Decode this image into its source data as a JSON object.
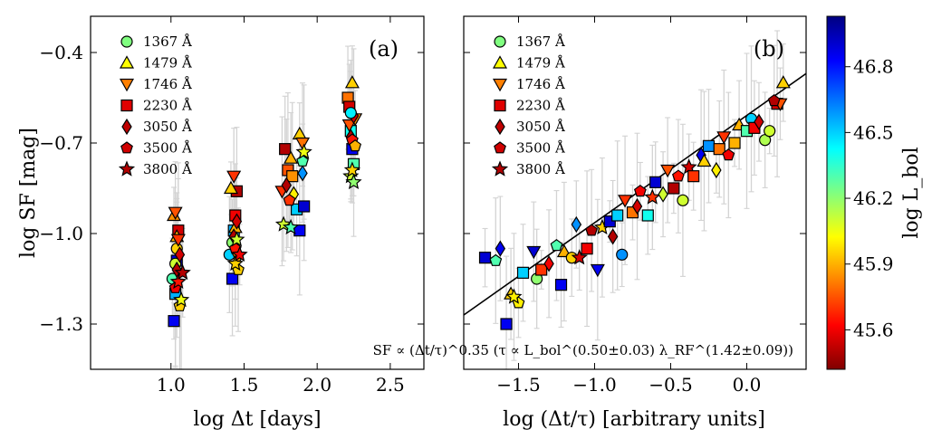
{
  "figure": {
    "colorbar": {
      "label": "log L_bol",
      "ticks": [
        "45.6",
        "45.9",
        "46.2",
        "46.5",
        "46.8"
      ],
      "tick_values": [
        45.6,
        45.9,
        46.2,
        46.5,
        46.8
      ],
      "range": [
        45.42,
        47.03
      ],
      "colormap": "jet",
      "colors": [
        "#800000",
        "#ff0000",
        "#ff8000",
        "#ffff00",
        "#80ff80",
        "#00ffff",
        "#0080ff",
        "#0000ff",
        "#000080"
      ]
    },
    "legend": [
      {
        "label": "1367 Å",
        "marker": "circle",
        "color": "#80ff80"
      },
      {
        "label": "1479 Å",
        "marker": "triangle-up",
        "color": "#ffff00"
      },
      {
        "label": "1746 Å",
        "marker": "triangle-down",
        "color": "#ff8000"
      },
      {
        "label": "2230 Å",
        "marker": "square",
        "color": "#e00000"
      },
      {
        "label": "3050 Å",
        "marker": "diamond",
        "color": "#c00000"
      },
      {
        "label": "3500 Å",
        "marker": "pentagon",
        "color": "#d00000"
      },
      {
        "label": "3800 Å",
        "marker": "star",
        "color": "#b00000"
      }
    ]
  },
  "chart_data": [
    {
      "type": "scatter",
      "panel": "(a)",
      "xlabel": "log Δt [days]",
      "ylabel": "log SF [mag]",
      "xlim": [
        0.45,
        2.73
      ],
      "ylim": [
        -1.45,
        -0.28
      ],
      "xticks": [
        1.0,
        1.5,
        2.0,
        2.5
      ],
      "xtick_labels": [
        "1.0",
        "1.5",
        "2.0",
        "2.5"
      ],
      "yticks": [
        -1.3,
        -1.0,
        -0.7,
        -0.4
      ],
      "ytick_labels": [
        "−1.3",
        "−1.0",
        "−0.7",
        "−0.4"
      ],
      "grid": false,
      "legend_position": "top-left",
      "points": [
        {
          "x": 1.02,
          "y": -1.29,
          "marker": "square",
          "logL": 46.85
        },
        {
          "x": 1.03,
          "y": -1.2,
          "marker": "square",
          "logL": 46.55
        },
        {
          "x": 1.04,
          "y": -1.09,
          "marker": "square",
          "logL": 46.9
        },
        {
          "x": 1.05,
          "y": -0.99,
          "marker": "square",
          "logL": 45.55
        },
        {
          "x": 1.01,
          "y": -1.15,
          "marker": "circle",
          "logL": 46.3
        },
        {
          "x": 1.03,
          "y": -1.1,
          "marker": "circle",
          "logL": 46.1
        },
        {
          "x": 1.04,
          "y": -1.05,
          "marker": "circle",
          "logL": 45.95
        },
        {
          "x": 1.02,
          "y": -0.94,
          "marker": "triangle-up",
          "logL": 45.85
        },
        {
          "x": 1.04,
          "y": -1.01,
          "marker": "triangle-up",
          "logL": 45.9
        },
        {
          "x": 1.03,
          "y": -0.93,
          "marker": "triangle-down",
          "logL": 45.75
        },
        {
          "x": 1.05,
          "y": -1.02,
          "marker": "triangle-down",
          "logL": 45.7
        },
        {
          "x": 1.04,
          "y": -1.12,
          "marker": "diamond",
          "logL": 45.5
        },
        {
          "x": 1.06,
          "y": -1.07,
          "marker": "diamond",
          "logL": 45.55
        },
        {
          "x": 1.03,
          "y": -1.18,
          "marker": "pentagon",
          "logL": 45.6
        },
        {
          "x": 1.06,
          "y": -1.24,
          "marker": "pentagon",
          "logL": 45.95
        },
        {
          "x": 1.05,
          "y": -1.16,
          "marker": "star",
          "logL": 45.65
        },
        {
          "x": 1.07,
          "y": -1.22,
          "marker": "star",
          "logL": 46.05
        },
        {
          "x": 1.08,
          "y": -1.13,
          "marker": "star",
          "logL": 45.5
        },
        {
          "x": 1.42,
          "y": -1.15,
          "marker": "square",
          "logL": 46.85
        },
        {
          "x": 1.43,
          "y": -0.99,
          "marker": "square",
          "logL": 46.55
        },
        {
          "x": 1.45,
          "y": -0.86,
          "marker": "square",
          "logL": 45.5
        },
        {
          "x": 1.44,
          "y": -0.94,
          "marker": "square",
          "logL": 45.6
        },
        {
          "x": 1.4,
          "y": -1.07,
          "marker": "circle",
          "logL": 46.5
        },
        {
          "x": 1.42,
          "y": -1.03,
          "marker": "circle",
          "logL": 46.2
        },
        {
          "x": 1.41,
          "y": -0.85,
          "marker": "triangle-up",
          "logL": 45.95
        },
        {
          "x": 1.44,
          "y": -0.98,
          "marker": "triangle-up",
          "logL": 45.9
        },
        {
          "x": 1.43,
          "y": -0.81,
          "marker": "triangle-down",
          "logL": 45.7
        },
        {
          "x": 1.46,
          "y": -1.08,
          "marker": "triangle-down",
          "logL": 45.85
        },
        {
          "x": 1.43,
          "y": -1.01,
          "marker": "diamond",
          "logL": 45.5
        },
        {
          "x": 1.45,
          "y": -0.96,
          "marker": "diamond",
          "logL": 45.55
        },
        {
          "x": 1.44,
          "y": -1.05,
          "marker": "pentagon",
          "logL": 45.65
        },
        {
          "x": 1.46,
          "y": -1.12,
          "marker": "pentagon",
          "logL": 45.95
        },
        {
          "x": 1.44,
          "y": -1.1,
          "marker": "star",
          "logL": 45.95
        },
        {
          "x": 1.45,
          "y": -1.02,
          "marker": "star",
          "logL": 46.1
        },
        {
          "x": 1.47,
          "y": -1.07,
          "marker": "star",
          "logL": 45.6
        },
        {
          "x": 1.78,
          "y": -0.72,
          "marker": "square",
          "logL": 45.5
        },
        {
          "x": 1.8,
          "y": -0.79,
          "marker": "square",
          "logL": 45.75
        },
        {
          "x": 1.83,
          "y": -0.81,
          "marker": "square",
          "logL": 45.85
        },
        {
          "x": 1.86,
          "y": -0.92,
          "marker": "square",
          "logL": 46.5
        },
        {
          "x": 1.88,
          "y": -0.99,
          "marker": "square",
          "logL": 46.85
        },
        {
          "x": 1.91,
          "y": -0.91,
          "marker": "square",
          "logL": 46.9
        },
        {
          "x": 1.76,
          "y": -0.86,
          "marker": "triangle-down",
          "logL": 45.7
        },
        {
          "x": 1.82,
          "y": -0.75,
          "marker": "triangle-up",
          "logL": 45.9
        },
        {
          "x": 1.88,
          "y": -0.67,
          "marker": "triangle-up",
          "logL": 45.95
        },
        {
          "x": 1.9,
          "y": -0.7,
          "marker": "triangle-down",
          "logL": 45.8
        },
        {
          "x": 1.79,
          "y": -0.84,
          "marker": "diamond",
          "logL": 45.5
        },
        {
          "x": 1.84,
          "y": -0.87,
          "marker": "diamond",
          "logL": 46.0
        },
        {
          "x": 1.9,
          "y": -0.8,
          "marker": "diamond",
          "logL": 46.6
        },
        {
          "x": 1.81,
          "y": -0.89,
          "marker": "pentagon",
          "logL": 45.7
        },
        {
          "x": 1.9,
          "y": -0.76,
          "marker": "pentagon",
          "logL": 46.3
        },
        {
          "x": 1.77,
          "y": -0.97,
          "marker": "star",
          "logL": 46.1
        },
        {
          "x": 1.82,
          "y": -0.98,
          "marker": "star",
          "logL": 46.3
        },
        {
          "x": 1.91,
          "y": -0.73,
          "marker": "star",
          "logL": 46.05
        },
        {
          "x": 2.21,
          "y": -0.55,
          "marker": "square",
          "logL": 45.8
        },
        {
          "x": 2.22,
          "y": -0.58,
          "marker": "square",
          "logL": 45.55
        },
        {
          "x": 2.23,
          "y": -0.66,
          "marker": "square",
          "logL": 46.4
        },
        {
          "x": 2.24,
          "y": -0.72,
          "marker": "square",
          "logL": 46.85
        },
        {
          "x": 2.25,
          "y": -0.77,
          "marker": "square",
          "logL": 46.3
        },
        {
          "x": 2.24,
          "y": -0.5,
          "marker": "triangle-up",
          "logL": 45.95
        },
        {
          "x": 2.22,
          "y": -0.64,
          "marker": "triangle-down",
          "logL": 45.75
        },
        {
          "x": 2.26,
          "y": -0.62,
          "marker": "triangle-down",
          "logL": 45.85
        },
        {
          "x": 2.23,
          "y": -0.68,
          "marker": "diamond",
          "logL": 45.5
        },
        {
          "x": 2.25,
          "y": -0.61,
          "marker": "diamond",
          "logL": 45.55
        },
        {
          "x": 2.24,
          "y": -0.69,
          "marker": "pentagon",
          "logL": 45.65
        },
        {
          "x": 2.26,
          "y": -0.71,
          "marker": "pentagon",
          "logL": 45.9
        },
        {
          "x": 2.23,
          "y": -0.81,
          "marker": "star",
          "logL": 46.1
        },
        {
          "x": 2.25,
          "y": -0.83,
          "marker": "star",
          "logL": 46.2
        },
        {
          "x": 2.24,
          "y": -0.79,
          "marker": "star",
          "logL": 45.95
        },
        {
          "x": 2.23,
          "y": -0.6,
          "marker": "circle",
          "logL": 46.45
        }
      ]
    },
    {
      "type": "scatter",
      "panel": "(b)",
      "xlabel": "log (Δt/τ) [arbitrary units]",
      "xlim": [
        -1.86,
        0.39
      ],
      "ylim": [
        -1.45,
        -0.28
      ],
      "xticks": [
        -1.5,
        -1.0,
        -0.5,
        0.0
      ],
      "xtick_labels": [
        "−1.5",
        "−1.0",
        "−0.5",
        "0.0"
      ],
      "grid": false,
      "legend_position": "top-left",
      "fit_line": {
        "x": [
          -1.86,
          0.39
        ],
        "y": [
          -1.27,
          -0.47
        ]
      },
      "annotation": "SF ∝ (Δt/τ)^0.35 (τ ∝ L_bol^(0.50±0.03) λ_RF^(1.42±0.09))",
      "points": [
        {
          "x": -1.72,
          "y": -1.08,
          "marker": "square",
          "logL": 46.9
        },
        {
          "x": -1.65,
          "y": -1.09,
          "marker": "pentagon",
          "logL": 46.3
        },
        {
          "x": -1.62,
          "y": -1.05,
          "marker": "diamond",
          "logL": 46.85
        },
        {
          "x": -1.55,
          "y": -1.2,
          "marker": "triangle-up",
          "logL": 45.95
        },
        {
          "x": -1.5,
          "y": -1.23,
          "marker": "pentagon",
          "logL": 46.0
        },
        {
          "x": -1.58,
          "y": -1.3,
          "marker": "square",
          "logL": 46.85
        },
        {
          "x": -1.53,
          "y": -1.21,
          "marker": "star",
          "logL": 46.0
        },
        {
          "x": -1.47,
          "y": -1.13,
          "marker": "square",
          "logL": 46.5
        },
        {
          "x": -1.4,
          "y": -1.06,
          "marker": "triangle-down",
          "logL": 46.9
        },
        {
          "x": -1.38,
          "y": -1.15,
          "marker": "circle",
          "logL": 46.2
        },
        {
          "x": -1.35,
          "y": -1.12,
          "marker": "square",
          "logL": 45.7
        },
        {
          "x": -1.3,
          "y": -1.1,
          "marker": "diamond",
          "logL": 45.6
        },
        {
          "x": -1.25,
          "y": -1.04,
          "marker": "pentagon",
          "logL": 46.3
        },
        {
          "x": -1.22,
          "y": -1.17,
          "marker": "square",
          "logL": 46.85
        },
        {
          "x": -1.2,
          "y": -1.06,
          "marker": "triangle-up",
          "logL": 45.9
        },
        {
          "x": -1.15,
          "y": -1.08,
          "marker": "circle",
          "logL": 45.95
        },
        {
          "x": -1.12,
          "y": -0.97,
          "marker": "diamond",
          "logL": 46.6
        },
        {
          "x": -1.1,
          "y": -1.08,
          "marker": "star",
          "logL": 45.55
        },
        {
          "x": -1.05,
          "y": -1.05,
          "marker": "square",
          "logL": 45.6
        },
        {
          "x": -1.02,
          "y": -0.99,
          "marker": "pentagon",
          "logL": 45.5
        },
        {
          "x": -0.98,
          "y": -1.12,
          "marker": "triangle-down",
          "logL": 46.85
        },
        {
          "x": -0.95,
          "y": -0.98,
          "marker": "star",
          "logL": 45.95
        },
        {
          "x": -0.9,
          "y": -0.96,
          "marker": "square",
          "logL": 46.9
        },
        {
          "x": -0.88,
          "y": -1.01,
          "marker": "diamond",
          "logL": 45.5
        },
        {
          "x": -0.85,
          "y": -0.94,
          "marker": "square",
          "logL": 46.5
        },
        {
          "x": -0.82,
          "y": -1.07,
          "marker": "circle",
          "logL": 46.6
        },
        {
          "x": -0.8,
          "y": -0.89,
          "marker": "triangle-down",
          "logL": 45.7
        },
        {
          "x": -0.75,
          "y": -0.93,
          "marker": "square",
          "logL": 45.8
        },
        {
          "x": -0.72,
          "y": -0.91,
          "marker": "diamond",
          "logL": 45.55
        },
        {
          "x": -0.7,
          "y": -0.86,
          "marker": "pentagon",
          "logL": 45.6
        },
        {
          "x": -0.65,
          "y": -0.94,
          "marker": "square",
          "logL": 46.4
        },
        {
          "x": -0.62,
          "y": -0.88,
          "marker": "star",
          "logL": 45.7
        },
        {
          "x": -0.6,
          "y": -0.83,
          "marker": "square",
          "logL": 46.9
        },
        {
          "x": -0.55,
          "y": -0.87,
          "marker": "diamond",
          "logL": 46.1
        },
        {
          "x": -0.52,
          "y": -0.79,
          "marker": "triangle-down",
          "logL": 45.75
        },
        {
          "x": -0.48,
          "y": -0.85,
          "marker": "square",
          "logL": 45.5
        },
        {
          "x": -0.45,
          "y": -0.81,
          "marker": "pentagon",
          "logL": 45.65
        },
        {
          "x": -0.42,
          "y": -0.89,
          "marker": "circle",
          "logL": 46.1
        },
        {
          "x": -0.38,
          "y": -0.78,
          "marker": "star",
          "logL": 45.55
        },
        {
          "x": -0.35,
          "y": -0.81,
          "marker": "square",
          "logL": 45.7
        },
        {
          "x": -0.3,
          "y": -0.74,
          "marker": "diamond",
          "logL": 46.85
        },
        {
          "x": -0.28,
          "y": -0.76,
          "marker": "triangle-up",
          "logL": 45.95
        },
        {
          "x": -0.25,
          "y": -0.71,
          "marker": "square",
          "logL": 46.6
        },
        {
          "x": -0.2,
          "y": -0.79,
          "marker": "diamond",
          "logL": 46.0
        },
        {
          "x": -0.18,
          "y": -0.72,
          "marker": "square",
          "logL": 45.8
        },
        {
          "x": -0.15,
          "y": -0.68,
          "marker": "triangle-down",
          "logL": 45.7
        },
        {
          "x": -0.12,
          "y": -0.74,
          "marker": "pentagon",
          "logL": 45.6
        },
        {
          "x": -0.08,
          "y": -0.7,
          "marker": "square",
          "logL": 45.9
        },
        {
          "x": -0.05,
          "y": -0.64,
          "marker": "triangle-up",
          "logL": 45.9
        },
        {
          "x": 0.0,
          "y": -0.66,
          "marker": "square",
          "logL": 46.3
        },
        {
          "x": 0.03,
          "y": -0.62,
          "marker": "circle",
          "logL": 46.5
        },
        {
          "x": 0.05,
          "y": -0.65,
          "marker": "square",
          "logL": 45.6
        },
        {
          "x": 0.08,
          "y": -0.63,
          "marker": "diamond",
          "logL": 45.55
        },
        {
          "x": 0.12,
          "y": -0.69,
          "marker": "circle",
          "logL": 46.15
        },
        {
          "x": 0.15,
          "y": -0.66,
          "marker": "circle",
          "logL": 46.1
        },
        {
          "x": 0.2,
          "y": -0.57,
          "marker": "square",
          "logL": 45.55
        },
        {
          "x": 0.22,
          "y": -0.57,
          "marker": "triangle-down",
          "logL": 45.75
        },
        {
          "x": 0.24,
          "y": -0.5,
          "marker": "triangle-up",
          "logL": 45.95
        },
        {
          "x": 0.18,
          "y": -0.56,
          "marker": "pentagon",
          "logL": 45.5
        }
      ]
    }
  ]
}
